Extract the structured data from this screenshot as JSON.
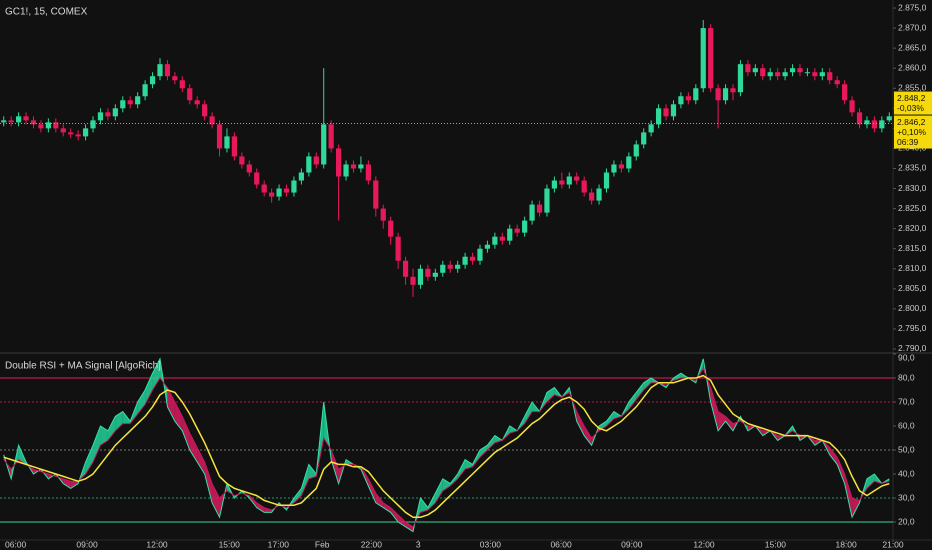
{
  "chart_data": [
    {
      "type": "candlestick",
      "title": "GC1!, 15, COMEX",
      "up_color": "#2fd99a",
      "down_color": "#e8195a",
      "open": [
        2846.5,
        2847,
        2846.5,
        2848,
        2847,
        2846,
        2845,
        2846.5,
        2845,
        2844,
        2843.5,
        2843,
        2845,
        2847,
        2849,
        2848,
        2850,
        2852,
        2851,
        2853,
        2856,
        2858,
        2861,
        2858,
        2857,
        2855,
        2852,
        2851,
        2848,
        2846,
        2840,
        2843,
        2838,
        2836,
        2834,
        2831,
        2829,
        2828,
        2830,
        2829,
        2832,
        2834,
        2838,
        2836,
        2846,
        2840,
        2833,
        2836,
        2835,
        2836,
        2832,
        2825,
        2822,
        2818,
        2812,
        2808,
        2806,
        2810,
        2808,
        2809,
        2811,
        2810,
        2811,
        2813,
        2812,
        2815,
        2816,
        2818,
        2817,
        2820,
        2819,
        2822,
        2826,
        2824,
        2830,
        2832,
        2831,
        2833,
        2832,
        2829,
        2827,
        2830,
        2834,
        2836,
        2835,
        2838,
        2841,
        2844,
        2846,
        2850,
        2848,
        2851,
        2853,
        2852,
        2855,
        2870,
        2855,
        2852,
        2855,
        2854,
        2861,
        2859,
        2860,
        2858,
        2859,
        2858,
        2859,
        2860,
        2859,
        2859,
        2858,
        2859,
        2857,
        2856,
        2852,
        2849,
        2846,
        2847,
        2845,
        2847
      ],
      "high": [
        2848,
        2848,
        2849,
        2849,
        2848,
        2847,
        2847.5,
        2847.5,
        2846,
        2845,
        2844.5,
        2846,
        2848,
        2850,
        2850,
        2851,
        2853,
        2853,
        2854,
        2857,
        2859,
        2862.5,
        2862,
        2859,
        2858,
        2856,
        2853,
        2852,
        2849,
        2847,
        2845,
        2844,
        2839,
        2837,
        2835,
        2832,
        2830,
        2831,
        2831,
        2833,
        2835,
        2839,
        2839,
        2860,
        2847,
        2841,
        2837,
        2837,
        2838,
        2837,
        2833,
        2826,
        2823,
        2819,
        2813,
        2810,
        2811,
        2811,
        2810,
        2812,
        2812,
        2812,
        2814,
        2814,
        2816,
        2817,
        2819,
        2819,
        2821,
        2821,
        2823,
        2827,
        2827,
        2831,
        2833,
        2834,
        2834,
        2834,
        2833,
        2830,
        2831,
        2835,
        2837,
        2837,
        2839,
        2842,
        2845,
        2847,
        2851,
        2851,
        2852,
        2854,
        2854,
        2856,
        2872,
        2871,
        2856,
        2856,
        2856,
        2862,
        2862,
        2861,
        2861,
        2860,
        2860,
        2860,
        2861,
        2861,
        2860,
        2860,
        2860,
        2860,
        2858,
        2857,
        2853,
        2850,
        2848,
        2848,
        2848,
        2849
      ],
      "low": [
        2845.5,
        2845.5,
        2845.5,
        2846,
        2845,
        2844,
        2844,
        2844,
        2843,
        2842.5,
        2842,
        2842,
        2844,
        2846,
        2847,
        2847,
        2849,
        2850,
        2850,
        2852,
        2855,
        2857,
        2857,
        2856,
        2854,
        2851,
        2850,
        2847,
        2845,
        2838,
        2839,
        2837,
        2835,
        2833,
        2830,
        2828,
        2826.5,
        2827,
        2828,
        2828,
        2831,
        2833,
        2835,
        2835,
        2839,
        2822,
        2832,
        2834,
        2834,
        2831,
        2823,
        2820,
        2816,
        2810,
        2806,
        2803,
        2805,
        2807,
        2807,
        2808,
        2809,
        2809,
        2810,
        2811,
        2811,
        2814,
        2815,
        2816,
        2816,
        2818,
        2818,
        2821,
        2823,
        2823,
        2829,
        2830,
        2830,
        2831,
        2828,
        2826,
        2826,
        2829,
        2833,
        2834,
        2834,
        2837,
        2840,
        2843,
        2845,
        2847,
        2847,
        2850,
        2851,
        2851,
        2854,
        2854,
        2845,
        2851,
        2852,
        2853,
        2858,
        2858,
        2857,
        2857,
        2857,
        2857,
        2858,
        2858,
        2858,
        2857,
        2857,
        2856,
        2855,
        2851,
        2848,
        2845,
        2845,
        2844,
        2844,
        2846.5
      ],
      "close": [
        2847,
        2846.5,
        2848,
        2847,
        2846,
        2845,
        2846.5,
        2845,
        2844,
        2843.5,
        2843,
        2845,
        2847,
        2849,
        2848,
        2850,
        2852,
        2851,
        2853,
        2856,
        2858,
        2861,
        2858,
        2857,
        2855,
        2852,
        2851,
        2848,
        2846,
        2840,
        2843,
        2838,
        2836,
        2834,
        2831,
        2829,
        2828,
        2830,
        2829,
        2832,
        2834,
        2838,
        2836,
        2846,
        2840,
        2833,
        2836,
        2835,
        2836,
        2832,
        2825,
        2822,
        2818,
        2812,
        2808,
        2806,
        2810,
        2808,
        2809,
        2811,
        2810,
        2811,
        2813,
        2812,
        2815,
        2816,
        2818,
        2817,
        2820,
        2819,
        2822,
        2826,
        2824,
        2830,
        2832,
        2831,
        2833,
        2832,
        2829,
        2827,
        2830,
        2834,
        2836,
        2835,
        2838,
        2841,
        2844,
        2846,
        2850,
        2848,
        2851,
        2853,
        2852,
        2855,
        2870,
        2855,
        2852,
        2855,
        2854,
        2861,
        2859,
        2860,
        2858,
        2859,
        2858,
        2859,
        2860,
        2859,
        2859,
        2858,
        2859,
        2857,
        2856,
        2852,
        2849,
        2846,
        2847,
        2845,
        2847,
        2848
      ],
      "xlim": [
        -0.5,
        119.5
      ],
      "ylim": [
        2789.25,
        2877
      ],
      "yticks": [
        {
          "value": 2790,
          "label": "2.790,0"
        },
        {
          "value": 2795,
          "label": "2.795,0"
        },
        {
          "value": 2800,
          "label": "2.800,0"
        },
        {
          "value": 2805,
          "label": "2.805,0"
        },
        {
          "value": 2810,
          "label": "2.810,0"
        },
        {
          "value": 2815,
          "label": "2.815,0"
        },
        {
          "value": 2820,
          "label": "2.820,0"
        },
        {
          "value": 2825,
          "label": "2.825,0"
        },
        {
          "value": 2830,
          "label": "2.830,0"
        },
        {
          "value": 2835,
          "label": "2.835,0"
        },
        {
          "value": 2840,
          "label": "2.840,0"
        },
        {
          "value": 2845,
          "label": "2.845,0"
        },
        {
          "value": 2850,
          "label": "2.850,0"
        },
        {
          "value": 2855,
          "label": "2.855,0"
        },
        {
          "value": 2860,
          "label": "2.860,0"
        },
        {
          "value": 2865,
          "label": "2.865,0"
        },
        {
          "value": 2870,
          "label": "2.870,0"
        },
        {
          "value": 2875,
          "label": "2.875,0"
        }
      ],
      "price_tags": [
        {
          "value": 2848.2,
          "label": "2.848,2",
          "change": "-0,03%"
        },
        {
          "value": 2846.2,
          "label": "2.846,2",
          "change": "+0,10%",
          "countdown": "06:39"
        }
      ],
      "tag_color": "#f5d90a",
      "price_line_color": "#e0a020"
    },
    {
      "type": "line",
      "title": "Double RSI + MA Signal [AlgoRich]",
      "fill_up": "#22d49a",
      "fill_down": "#d81b60",
      "series": [
        {
          "color": "#35e0a6",
          "values": [
            48,
            38,
            52,
            45,
            40,
            42,
            38,
            40,
            36,
            34,
            36,
            45,
            52,
            60,
            58,
            64,
            66,
            62,
            70,
            75,
            82,
            88,
            68,
            62,
            58,
            50,
            45,
            40,
            28,
            22,
            36,
            30,
            33,
            30,
            26,
            24,
            24,
            28,
            25,
            30,
            34,
            44,
            40,
            70,
            46,
            36,
            46,
            44,
            42,
            35,
            28,
            26,
            24,
            20,
            18,
            16,
            30,
            26,
            32,
            38,
            36,
            40,
            46,
            44,
            50,
            52,
            56,
            54,
            60,
            58,
            64,
            70,
            66,
            74,
            76,
            72,
            76,
            62,
            56,
            52,
            60,
            62,
            66,
            64,
            70,
            74,
            78,
            80,
            78,
            76,
            80,
            82,
            80,
            78,
            88,
            70,
            58,
            62,
            58,
            64,
            58,
            60,
            56,
            58,
            54,
            56,
            60,
            54,
            56,
            52,
            54,
            48,
            44,
            36,
            22,
            28,
            38,
            40,
            36,
            38
          ]
        },
        {
          "color": "#c2185b",
          "values": [
            46,
            42,
            46,
            44,
            42,
            41,
            40,
            39,
            38,
            37,
            37,
            40,
            45,
            52,
            54,
            58,
            61,
            61,
            65,
            69,
            75,
            80,
            76,
            70,
            64,
            57,
            51,
            45,
            36,
            30,
            33,
            31,
            32,
            31,
            28,
            26,
            25,
            27,
            26,
            28,
            31,
            38,
            39,
            55,
            50,
            42,
            44,
            44,
            43,
            38,
            32,
            28,
            26,
            23,
            20,
            18,
            24,
            25,
            28,
            33,
            35,
            38,
            42,
            43,
            47,
            50,
            53,
            54,
            57,
            58,
            61,
            66,
            66,
            70,
            73,
            72,
            74,
            66,
            60,
            55,
            58,
            60,
            63,
            64,
            67,
            71,
            75,
            78,
            78,
            77,
            79,
            80,
            80,
            79,
            84,
            76,
            66,
            64,
            61,
            62,
            60,
            60,
            58,
            58,
            56,
            56,
            58,
            56,
            56,
            54,
            54,
            51,
            47,
            40,
            30,
            29,
            34,
            37,
            36,
            37
          ]
        },
        {
          "color": "#f5e53b",
          "values": [
            47,
            46,
            45,
            44,
            43,
            42,
            41,
            40,
            39,
            38,
            37,
            38,
            40,
            44,
            48,
            52,
            55,
            58,
            61,
            64,
            68,
            73,
            75,
            74,
            70,
            65,
            59,
            53,
            46,
            39,
            36,
            34,
            33,
            32,
            31,
            29,
            28,
            27,
            27,
            27,
            28,
            31,
            34,
            42,
            45,
            44,
            44,
            43,
            43,
            41,
            37,
            33,
            30,
            27,
            24,
            22,
            22,
            23,
            25,
            28,
            31,
            34,
            37,
            40,
            43,
            46,
            49,
            51,
            53,
            55,
            58,
            61,
            63,
            66,
            69,
            71,
            72,
            70,
            67,
            62,
            59,
            58,
            60,
            62,
            65,
            68,
            72,
            76,
            78,
            78,
            78,
            79,
            80,
            80,
            81,
            79,
            73,
            69,
            65,
            63,
            61,
            60,
            59,
            58,
            57,
            56,
            56,
            56,
            56,
            55,
            54,
            53,
            50,
            46,
            39,
            33,
            31,
            33,
            35,
            36
          ]
        }
      ],
      "xlim": [
        -0.5,
        119.5
      ],
      "ylim": [
        12.5,
        90
      ],
      "yticks": [
        {
          "value": 20,
          "label": "20,0"
        },
        {
          "value": 30,
          "label": "30,0"
        },
        {
          "value": 40,
          "label": "40,0"
        },
        {
          "value": 50,
          "label": "50,0"
        },
        {
          "value": 60,
          "label": "60,0"
        },
        {
          "value": 70,
          "label": "70,0"
        },
        {
          "value": 80,
          "label": "80,0"
        },
        {
          "value": 90,
          "label": "90,0"
        }
      ],
      "levels": [
        {
          "value": 80,
          "color": "#e8195a",
          "dash": "none"
        },
        {
          "value": 70,
          "color": "#b3174e",
          "dash": "2 2"
        },
        {
          "value": 50,
          "color": "#777777",
          "dash": "2 2"
        },
        {
          "value": 30,
          "color": "#1a9a70",
          "dash": "2 2"
        },
        {
          "value": 20,
          "color": "#2fd99a",
          "dash": "none"
        }
      ],
      "xticks": [
        {
          "value": 1.6,
          "label": "06:00"
        },
        {
          "value": 11.2,
          "label": "09:00"
        },
        {
          "value": 20.6,
          "label": "12:00"
        },
        {
          "value": 30.3,
          "label": "15:00"
        },
        {
          "value": 36.9,
          "label": "17:00"
        },
        {
          "value": 42.8,
          "label": "Feb"
        },
        {
          "value": 49.4,
          "label": "22:00"
        },
        {
          "value": 55.7,
          "label": "3"
        },
        {
          "value": 65.4,
          "label": "03:00"
        },
        {
          "value": 74.9,
          "label": "06:00"
        },
        {
          "value": 84.4,
          "label": "09:00"
        },
        {
          "value": 94.1,
          "label": "12:00"
        },
        {
          "value": 103.7,
          "label": "15:00"
        },
        {
          "value": 113.2,
          "label": "18:00"
        },
        {
          "value": 119.5,
          "label": "21:00"
        }
      ]
    }
  ]
}
